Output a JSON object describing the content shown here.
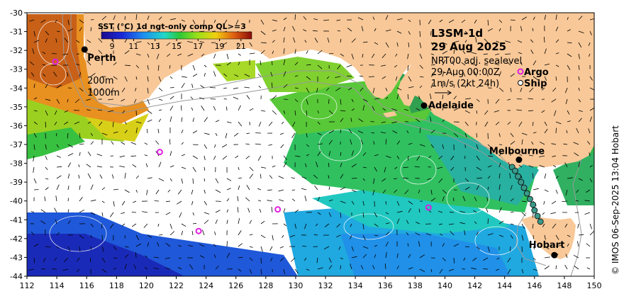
{
  "colorbar": {
    "title": "SST (°C) 1d ngt-only comp QL>=3",
    "ticks": [
      "9",
      "11",
      "13",
      "15",
      "17",
      "19",
      "21"
    ],
    "range": [
      8,
      22
    ]
  },
  "product": {
    "name": "L3SM-1d",
    "date": "29 Aug 2025",
    "line1": "NRT00 adj. sealevel",
    "line2": "29-Aug 00:00Z",
    "line3": "1m/s (2kt 24h)"
  },
  "legend": {
    "argo_label": "Argo",
    "ship_label": "Ship",
    "argo_color": "#e020e0",
    "ship_color": "#ffffff"
  },
  "contours": {
    "c200": "200m",
    "c1000": "1000m"
  },
  "credit": "© IMOS 06-Sep-2025 13:04 Hobart",
  "cities": [
    {
      "name": "Perth",
      "lon": 115.86,
      "lat": -31.95
    },
    {
      "name": "Adelaide",
      "lon": 138.6,
      "lat": -34.93
    },
    {
      "name": "Melbourne",
      "lon": 144.96,
      "lat": -37.81
    },
    {
      "name": "Hobart",
      "lon": 147.33,
      "lat": -42.88
    }
  ],
  "argo_floats": [
    {
      "lon": 113.9,
      "lat": -32.6
    },
    {
      "lon": 120.9,
      "lat": -37.4
    },
    {
      "lon": 128.8,
      "lat": -40.45
    },
    {
      "lon": 123.5,
      "lat": -41.6
    },
    {
      "lon": 138.9,
      "lat": -40.35
    }
  ],
  "axes": {
    "x_ticks": [
      "112",
      "114",
      "116",
      "118",
      "120",
      "122",
      "124",
      "126",
      "128",
      "130",
      "132",
      "134",
      "136",
      "138",
      "140",
      "142",
      "144",
      "146",
      "148",
      "150"
    ],
    "y_ticks": [
      "-30",
      "-31",
      "-32",
      "-33",
      "-34",
      "-35",
      "-36",
      "-37",
      "-38",
      "-39",
      "-40",
      "-41",
      "-42",
      "-43",
      "-44"
    ],
    "lon_range": [
      112,
      150
    ],
    "lat_range": [
      -44,
      -30
    ]
  },
  "colors": {
    "land": "#f8c898",
    "ocean_nodata": "#ffffff"
  }
}
